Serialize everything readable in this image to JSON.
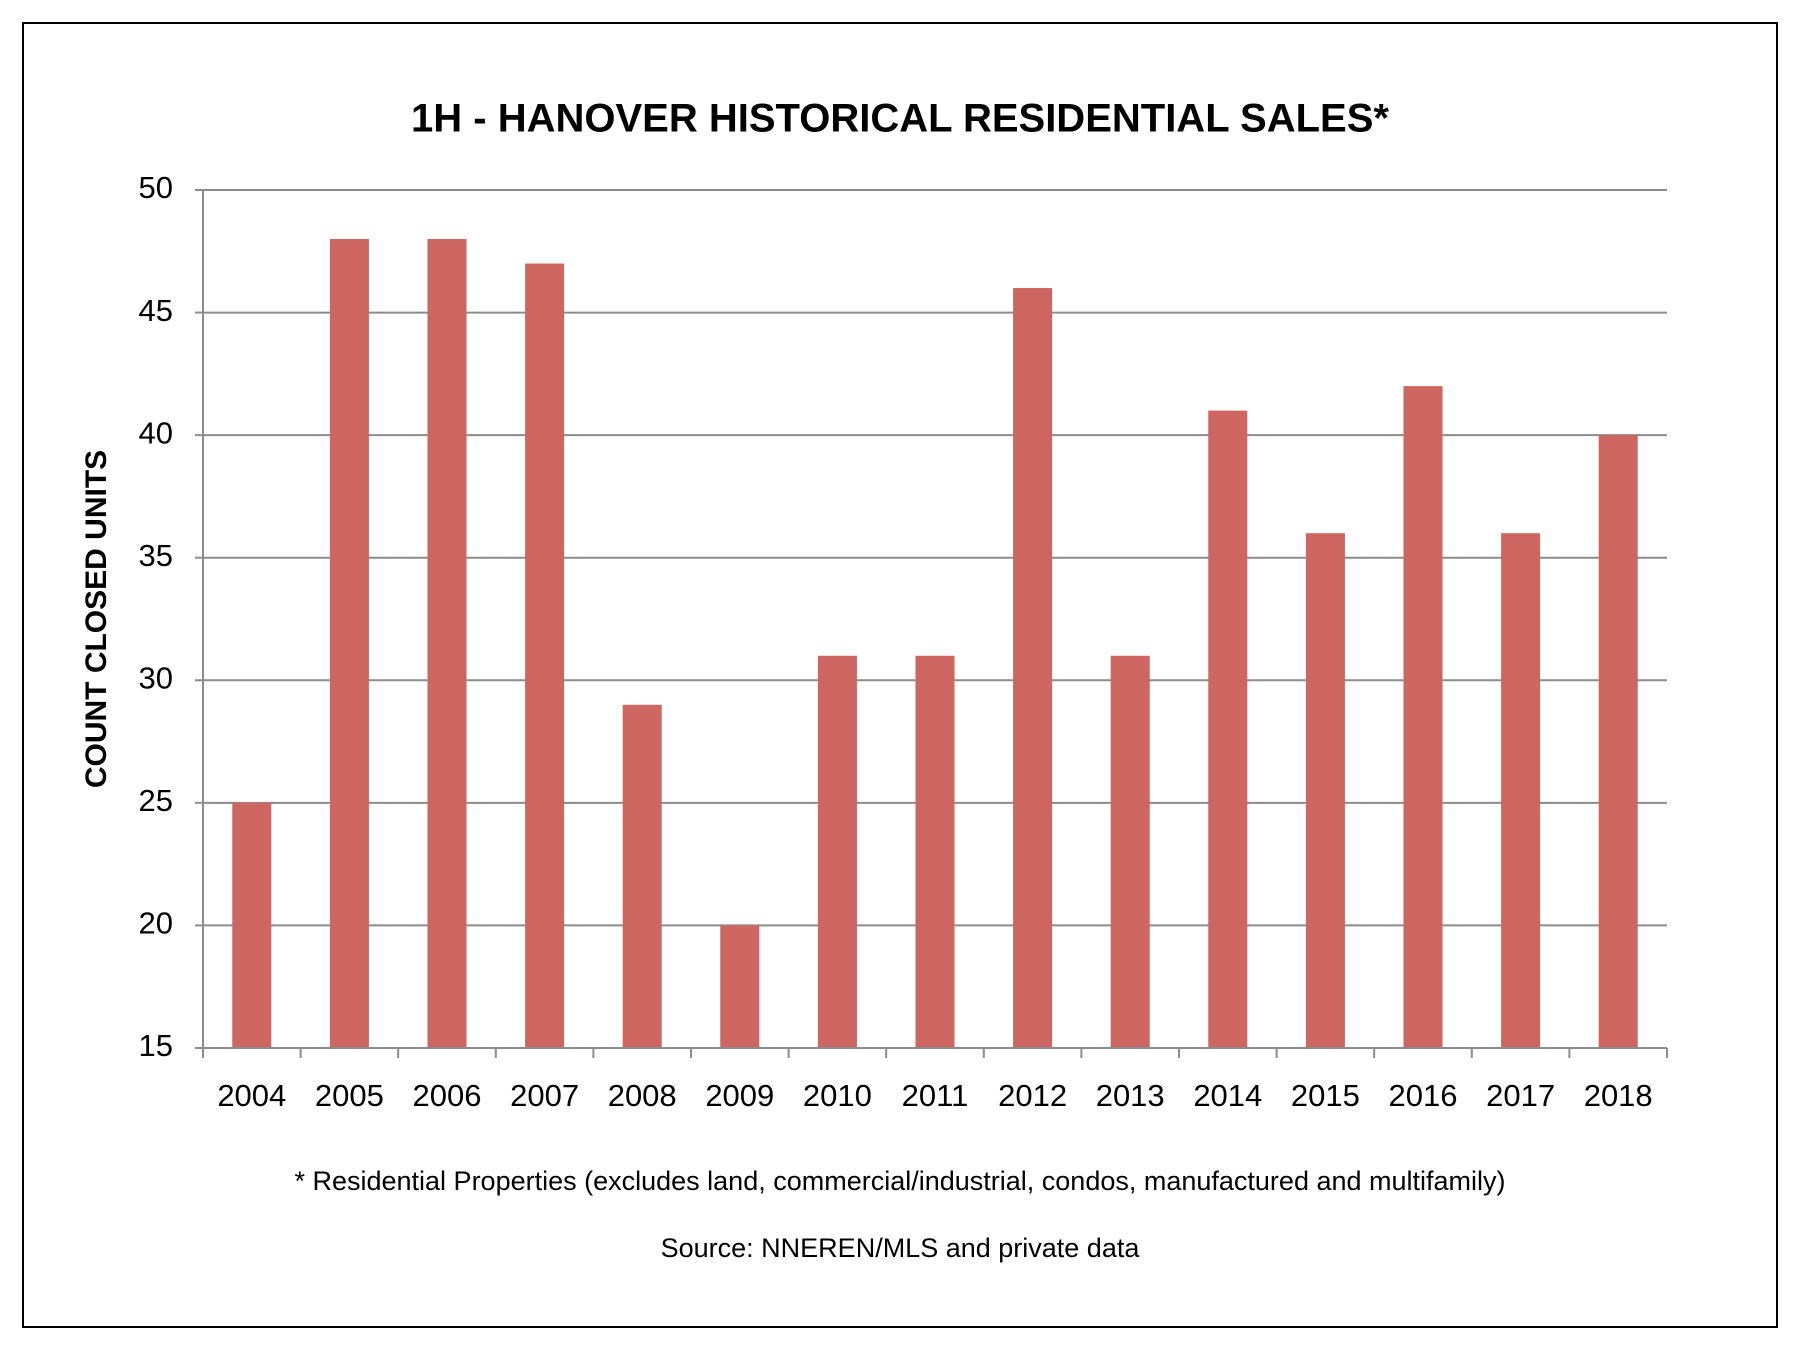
{
  "chart_data": {
    "type": "bar",
    "title": "1H - HANOVER HISTORICAL RESIDENTIAL SALES*",
    "y_label": "COUNT CLOSED UNITS",
    "footnote": "* Residential Properties (excludes land, commercial/industrial, condos, manufactured and multifamily)",
    "source": "Source: NNEREN/MLS and private data",
    "categories": [
      "2004",
      "2005",
      "2006",
      "2007",
      "2008",
      "2009",
      "2010",
      "2011",
      "2012",
      "2013",
      "2014",
      "2015",
      "2016",
      "2017",
      "2018"
    ],
    "values": [
      25,
      48,
      48,
      47,
      29,
      20,
      31,
      31,
      46,
      31,
      41,
      36,
      42,
      36,
      40
    ],
    "color": "#cd6560",
    "ylim": [
      15,
      50
    ],
    "yticks": [
      15,
      20,
      25,
      30,
      35,
      40,
      45,
      50
    ],
    "grid": true
  }
}
